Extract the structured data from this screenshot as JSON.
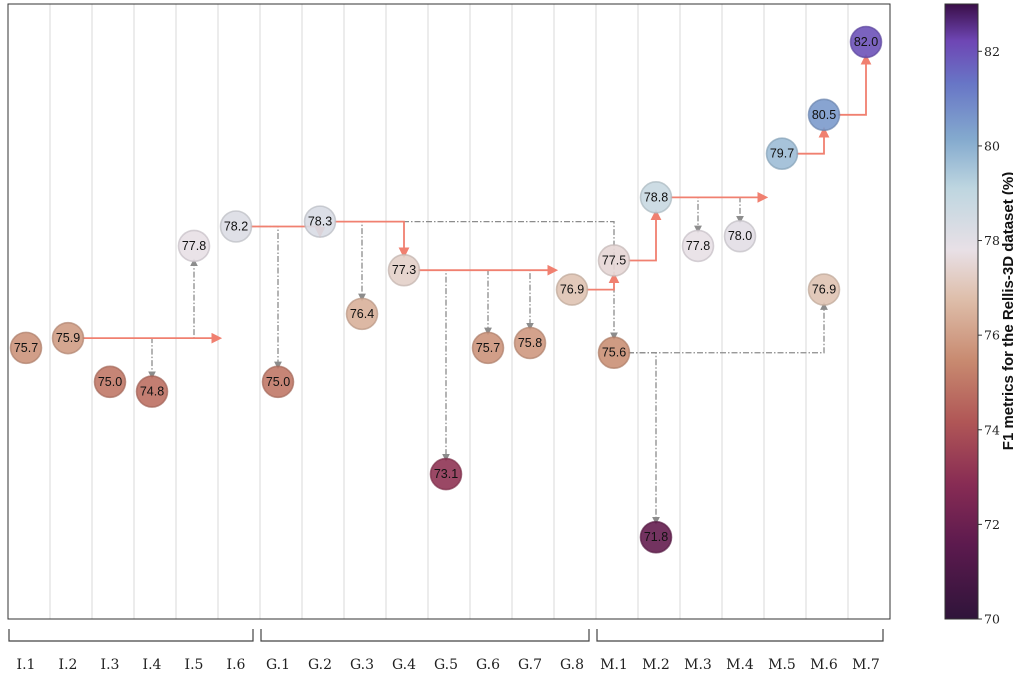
{
  "chart_data": {
    "type": "scatter",
    "categories": [
      "I.1",
      "I.2",
      "I.3",
      "I.4",
      "I.5",
      "I.6",
      "G.1",
      "G.2",
      "G.3",
      "G.4",
      "G.5",
      "G.6",
      "G.7",
      "G.8",
      "M.1",
      "M.2",
      "M.3",
      "M.4",
      "M.5",
      "M.6",
      "M.7"
    ],
    "groups": [
      {
        "range": [
          "I.1",
          "I.6"
        ]
      },
      {
        "range": [
          "G.1",
          "G.8"
        ]
      },
      {
        "range": [
          "M.1",
          "M.7"
        ]
      }
    ],
    "nodes": [
      {
        "id": "I.1",
        "value": 75.7
      },
      {
        "id": "I.2",
        "value": 75.9
      },
      {
        "id": "I.3",
        "value": 75.0
      },
      {
        "id": "I.4",
        "value": 74.8
      },
      {
        "id": "I.5",
        "value": 77.8
      },
      {
        "id": "I.6",
        "value": 78.2
      },
      {
        "id": "G.1",
        "value": 75.0
      },
      {
        "id": "G.2",
        "value": 78.3
      },
      {
        "id": "G.3",
        "value": 76.4
      },
      {
        "id": "G.4",
        "value": 77.3
      },
      {
        "id": "G.5",
        "value": 73.1
      },
      {
        "id": "G.6",
        "value": 75.7
      },
      {
        "id": "G.7",
        "value": 75.8
      },
      {
        "id": "G.8",
        "value": 76.9
      },
      {
        "id": "M.1a",
        "cat": "M.1",
        "value": 77.5
      },
      {
        "id": "M.1b",
        "cat": "M.1",
        "value": 75.6
      },
      {
        "id": "M.2a",
        "cat": "M.2",
        "value": 78.8
      },
      {
        "id": "M.2b",
        "cat": "M.2",
        "value": 71.8
      },
      {
        "id": "M.3",
        "value": 77.8
      },
      {
        "id": "M.4",
        "value": 78.0
      },
      {
        "id": "M.5",
        "value": 79.7
      },
      {
        "id": "M.6a",
        "cat": "M.6",
        "value": 80.5
      },
      {
        "id": "M.6b",
        "cat": "M.6",
        "value": 76.9
      },
      {
        "id": "M.7",
        "value": 82.0
      }
    ],
    "best_path": [
      "I.2",
      "I.6",
      "G.2",
      "G.4",
      "G.8",
      "M.1a",
      "M.2a",
      "M.5",
      "M.6a",
      "M.7"
    ],
    "branch_edges": [
      [
        "I.2",
        "I.4"
      ],
      [
        "I.2",
        "I.5"
      ],
      [
        "I.6",
        "G.1"
      ],
      [
        "G.2",
        "G.3"
      ],
      [
        "G.2",
        "M.1b"
      ],
      [
        "G.4",
        "G.5"
      ],
      [
        "G.4",
        "G.6"
      ],
      [
        "G.4",
        "G.7"
      ],
      [
        "M.2a",
        "M.3"
      ],
      [
        "M.2a",
        "M.4"
      ],
      [
        "M.1b",
        "M.2b"
      ],
      [
        "M.1b",
        "M.6b"
      ]
    ],
    "colorbar": {
      "label": "F1 metrics for the Rellis-3D dataset (%)",
      "min": 70,
      "max": 83,
      "ticks": [
        70,
        72,
        74,
        76,
        78,
        80,
        82
      ],
      "colormap": "twilight_shifted"
    },
    "colors": {
      "best_path": "#f08070",
      "branch": "#8c8c8c",
      "grid": "#d9d9d9"
    }
  }
}
